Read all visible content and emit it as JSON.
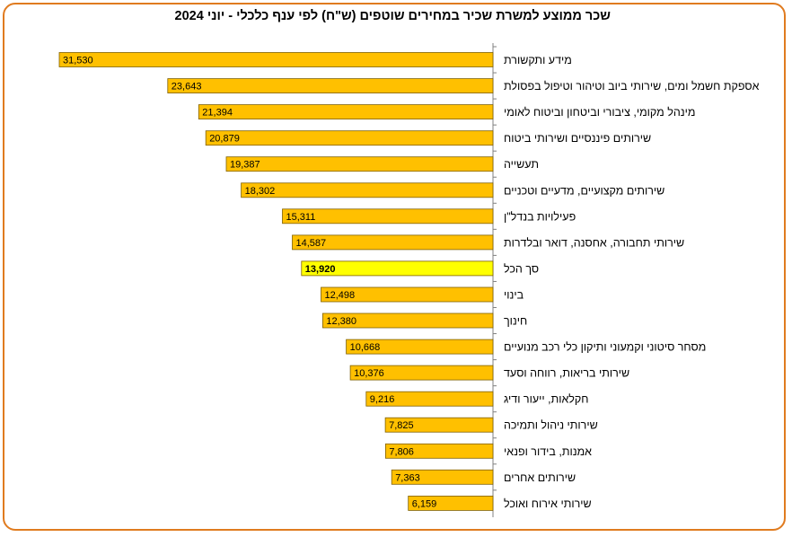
{
  "chart_data": {
    "type": "bar",
    "orientation": "horizontal",
    "title": "שכר ממוצע למשרת שכיר במחירים שוטפים (ש\"ח) לפי ענף כלכלי - יוני  2024",
    "categories": [
      "מידע ותקשורת",
      "אספקת חשמל ומים, שירותי ביוב וטיהור וטיפול בפסולת",
      "מינהל מקומי, ציבורי וביטחון וביטוח לאומי",
      "שירותים פיננסיים ושירותי ביטוח",
      "תעשייה",
      "שירותים מקצועיים, מדעיים וטכניים",
      "פעילויות בנדל\"ן",
      "שירותי תחבורה, אחסנה, דואר ובלדרות",
      "סך הכל",
      "בינוי",
      "חינוך",
      "מסחר סיטוני וקמעוני ותיקון כלי רכב מנועיים",
      "שירותי בריאות, רווחה וסעד",
      "חקלאות, ייעור ודיג",
      "שירותי ניהול ותמיכה",
      "אמנות, בידור ופנאי",
      "שירותים אחרים",
      "שירותי אירוח ואוכל"
    ],
    "values": [
      31530,
      23643,
      21394,
      20879,
      19387,
      18302,
      15311,
      14587,
      13920,
      12498,
      12380,
      10668,
      10376,
      9216,
      7825,
      7806,
      7363,
      6159
    ],
    "value_labels": [
      "31,530",
      "23,643",
      "21,394",
      "20,879",
      "19,387",
      "18,302",
      "15,311",
      "14,587",
      "13,920",
      "12,498",
      "12,380",
      "10,668",
      "10,376",
      "9,216",
      "7,825",
      "7,806",
      "7,363",
      "6,159"
    ],
    "highlight_category": "סך הכל",
    "xlim": [
      0,
      31530
    ],
    "bars_grow": "right-to-left",
    "grid": false,
    "legend": "none",
    "colors": {
      "bar": "#FFC000",
      "highlight": "#FFFF00",
      "bar_border": "#7F6000",
      "frame": "#E07B1F"
    }
  }
}
